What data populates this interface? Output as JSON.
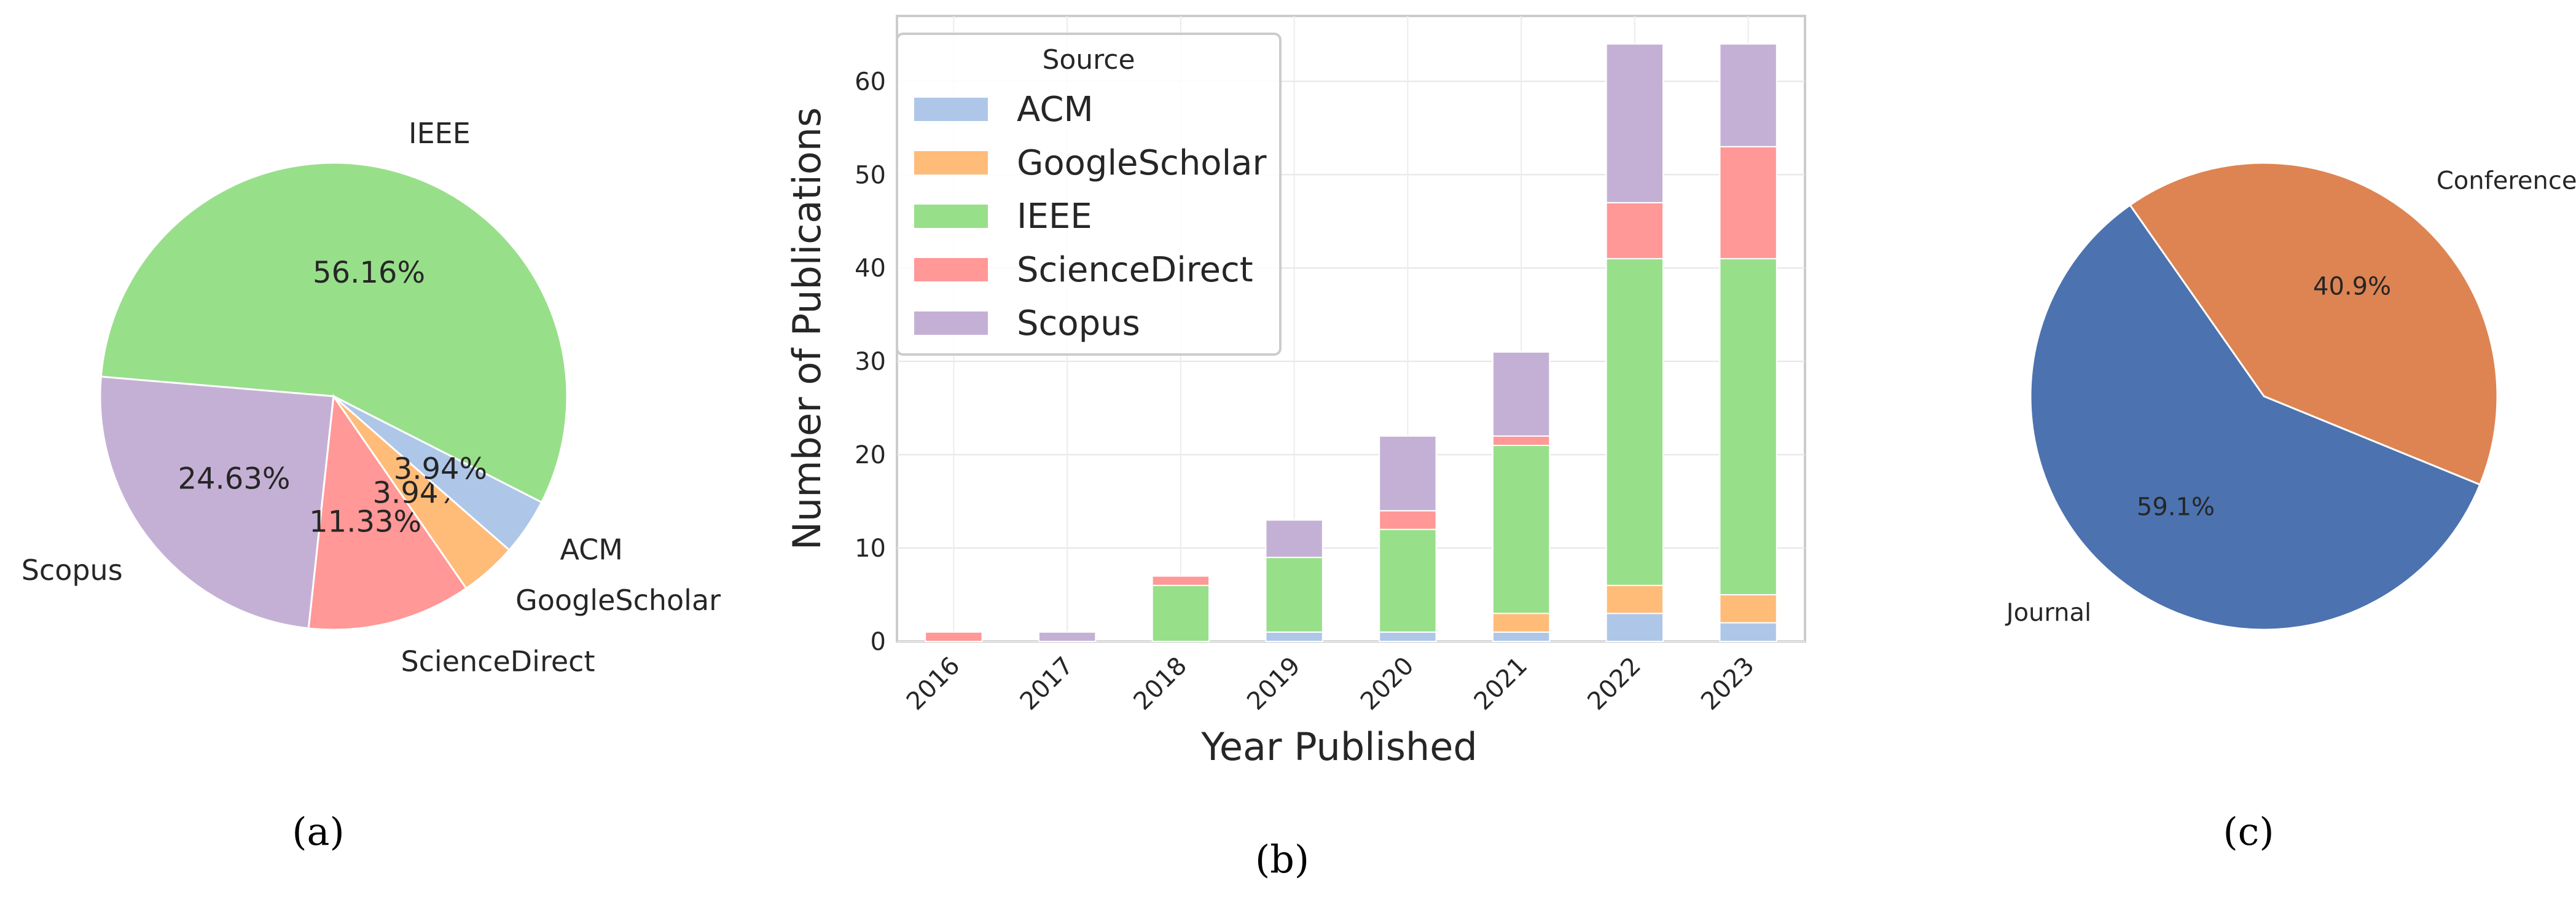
{
  "colors": {
    "ACM": "#aec7e8",
    "GoogleScholar": "#ffbb78",
    "IEEE": "#98df8a",
    "ScienceDirect": "#ff9896",
    "Scopus": "#c5b0d5",
    "Journal": "#4c72b0",
    "Conference": "#dd8452"
  },
  "chart_data": [
    {
      "type": "pie",
      "caption": "(a)",
      "slices": [
        {
          "name": "IEEE",
          "pct": 56.16,
          "label": "56.16%"
        },
        {
          "name": "Scopus",
          "pct": 24.63,
          "label": "24.63%"
        },
        {
          "name": "ScienceDirect",
          "pct": 11.33,
          "label": "11.33%"
        },
        {
          "name": "GoogleScholar",
          "pct": 3.94,
          "label": "3.94%"
        },
        {
          "name": "ACM",
          "pct": 3.94,
          "label": "3.94%"
        }
      ]
    },
    {
      "type": "bar",
      "stacked": true,
      "caption": "(b)",
      "xlabel": "Year Published",
      "ylabel": "Number of Publications",
      "ylim": [
        0,
        67
      ],
      "yticks": [
        0,
        10,
        20,
        30,
        40,
        50,
        60
      ],
      "grid": true,
      "legend": {
        "title": "Source",
        "placement": "top-left"
      },
      "categories": [
        "2016",
        "2017",
        "2018",
        "2019",
        "2020",
        "2021",
        "2022",
        "2023"
      ],
      "series": [
        {
          "name": "ACM",
          "values": [
            0,
            0,
            0,
            1,
            1,
            1,
            3,
            2
          ]
        },
        {
          "name": "GoogleScholar",
          "values": [
            0,
            0,
            0,
            0,
            0,
            2,
            3,
            3
          ]
        },
        {
          "name": "IEEE",
          "values": [
            0,
            0,
            6,
            8,
            11,
            18,
            35,
            36
          ]
        },
        {
          "name": "ScienceDirect",
          "values": [
            1,
            0,
            1,
            0,
            2,
            1,
            6,
            12
          ]
        },
        {
          "name": "Scopus",
          "values": [
            0,
            1,
            0,
            4,
            8,
            9,
            17,
            11
          ]
        }
      ]
    },
    {
      "type": "pie",
      "caption": "(c)",
      "slices": [
        {
          "name": "Conference",
          "pct": 40.9,
          "label": "40.9%"
        },
        {
          "name": "Journal",
          "pct": 59.1,
          "label": "59.1%"
        }
      ]
    }
  ]
}
